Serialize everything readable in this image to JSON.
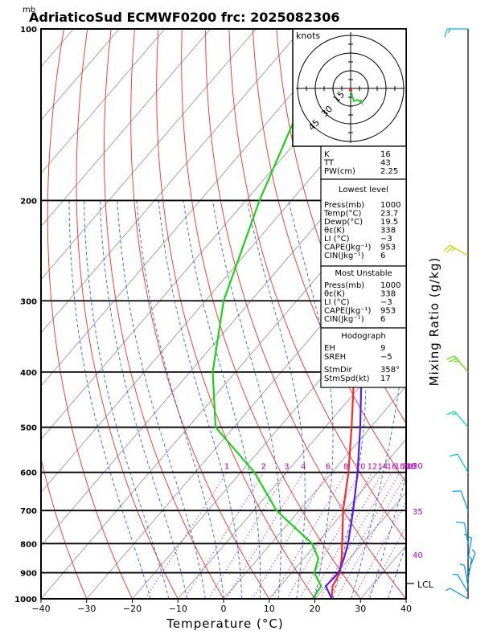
{
  "header": {
    "unit_mb": "mb",
    "title": "AdriaticoSud ECMWF0200 frc: 2025082306"
  },
  "axes": {
    "xlabel": "Temperature (°C)",
    "right_label": "Mixing Ratio (g/kg)",
    "x_ticks": [
      "−40",
      "−30",
      "−20",
      "−10",
      "0",
      "10",
      "20",
      "30",
      "40"
    ],
    "p_ticks": [
      "100",
      "200",
      "300",
      "400",
      "500",
      "600",
      "700",
      "800",
      "900",
      "1000"
    ],
    "lcl_label": "LCL"
  },
  "mixing_labels": [
    "1",
    "2",
    "3",
    "4",
    "6",
    "8",
    "10",
    "12",
    "14",
    "16",
    "18",
    "20",
    "25",
    "30"
  ],
  "theta_e_labels": [
    "30",
    "35",
    "40"
  ],
  "hodograph": {
    "unit": "knots",
    "ring_labels": [
      "15",
      "30",
      "45"
    ]
  },
  "indices": {
    "top": [
      {
        "label": "K",
        "value": "16"
      },
      {
        "label": "TT",
        "value": "43"
      },
      {
        "label": "PW(cm)",
        "value": "2.25"
      }
    ],
    "lowest_title": "Lowest level",
    "lowest": [
      {
        "label": "Press(mb)",
        "value": "1000"
      },
      {
        "label": "Temp(°C)",
        "value": "23.7"
      },
      {
        "label": "Dewp(°C)",
        "value": "19.5"
      },
      {
        "label": "θε(K)",
        "value": "338"
      },
      {
        "label": "LI  (°C)",
        "value": "−3"
      },
      {
        "label": "CAPE(Jkg⁻¹)",
        "value": "953"
      },
      {
        "label": "CIN(Jkg⁻¹)",
        "value": "6"
      }
    ],
    "unstable_title": "Most Unstable",
    "unstable": [
      {
        "label": "Press(mb)",
        "value": "1000"
      },
      {
        "label": "θε(K)",
        "value": "338"
      },
      {
        "label": "LI  (°C)",
        "value": "−3"
      },
      {
        "label": "CAPE(Jkg⁻¹)",
        "value": "953"
      },
      {
        "label": "CIN(Jkg⁻¹)",
        "value": "6"
      }
    ],
    "hodo_title": "Hodograph",
    "hodo": [
      {
        "label": "EH",
        "value": "9"
      },
      {
        "label": "SREH",
        "value": "−5"
      },
      {
        "label": "StmDir",
        "value": "358°"
      },
      {
        "label": "StmSpd(kt)",
        "value": "17"
      }
    ]
  },
  "colors": {
    "temperature": "#e83030",
    "dewpoint": "#22cc22",
    "parcel": "#5a1ed8",
    "isotherm": "#999999",
    "dry_adiabat": "#e83030",
    "moist_adiabat": "#3060e0",
    "mixing_ratio": "#b000b0",
    "wind": "#00b8d8"
  },
  "chart_data": {
    "type": "line",
    "title": "AdriaticoSud ECMWF0200 frc: 2025082306",
    "xlabel": "Temperature (°C)",
    "ylabel": "mb",
    "xlim": [
      -40,
      40
    ],
    "plim": [
      1000,
      100
    ],
    "y_scale": "log-pressure",
    "series": [
      {
        "name": "temperature",
        "points": [
          [
            1000,
            23.7
          ],
          [
            950,
            21.5
          ],
          [
            900,
            20.6
          ],
          [
            850,
            18.3
          ],
          [
            800,
            15.6
          ],
          [
            700,
            9.6
          ],
          [
            600,
            3.6
          ],
          [
            500,
            -4.2
          ],
          [
            400,
            -14.0
          ],
          [
            300,
            -28.5
          ],
          [
            250,
            -38.0
          ],
          [
            200,
            -45.0
          ],
          [
            150,
            -50.0
          ],
          [
            100,
            -55.0
          ]
        ]
      },
      {
        "name": "dewpoint",
        "points": [
          [
            1000,
            19.5
          ],
          [
            950,
            19.0
          ],
          [
            900,
            15.0
          ],
          [
            850,
            13.2
          ],
          [
            800,
            9.0
          ],
          [
            700,
            -5.0
          ],
          [
            600,
            -17.0
          ],
          [
            500,
            -34.0
          ],
          [
            400,
            -45.0
          ],
          [
            300,
            -56.0
          ],
          [
            200,
            -67.0
          ],
          [
            100,
            -83.0
          ]
        ]
      },
      {
        "name": "parcel",
        "points": [
          [
            1000,
            23.7
          ],
          [
            950,
            20.0
          ],
          [
            900,
            20.3
          ],
          [
            850,
            18.8
          ],
          [
            800,
            16.9
          ],
          [
            700,
            11.8
          ],
          [
            600,
            5.6
          ],
          [
            500,
            -2.3
          ],
          [
            400,
            -12.4
          ],
          [
            300,
            -27.5
          ],
          [
            250,
            -37.8
          ],
          [
            200,
            -50.0
          ],
          [
            150,
            -64.0
          ],
          [
            100,
            -83.0
          ]
        ]
      }
    ],
    "lcl_p": 940,
    "legend": "none",
    "grid": true
  },
  "winds": [
    {
      "p": 100,
      "dir": 270,
      "spd": 15,
      "color": "#00b8d8"
    },
    {
      "p": 250,
      "dir": 300,
      "spd": 25,
      "color": "#b8d800"
    },
    {
      "p": 400,
      "dir": 320,
      "spd": 25,
      "color": "#55d800"
    },
    {
      "p": 500,
      "dir": 320,
      "spd": 15,
      "color": "#00d8b0"
    },
    {
      "p": 600,
      "dir": 330,
      "spd": 10,
      "color": "#00b8d8"
    },
    {
      "p": 700,
      "dir": 340,
      "spd": 10,
      "color": "#00a0d8"
    },
    {
      "p": 800,
      "dir": 350,
      "spd": 10,
      "color": "#00a0d8"
    },
    {
      "p": 850,
      "dir": 10,
      "spd": 10,
      "color": "#0090d8"
    },
    {
      "p": 900,
      "dir": 20,
      "spd": 5,
      "color": "#0090d8"
    },
    {
      "p": 925,
      "dir": 10,
      "spd": 5,
      "color": "#0090d8"
    },
    {
      "p": 950,
      "dir": 350,
      "spd": 5,
      "color": "#0090d8"
    },
    {
      "p": 975,
      "dir": 330,
      "spd": 5,
      "color": "#0090d8"
    },
    {
      "p": 1000,
      "dir": 300,
      "spd": 5,
      "color": "#0090d8"
    }
  ]
}
